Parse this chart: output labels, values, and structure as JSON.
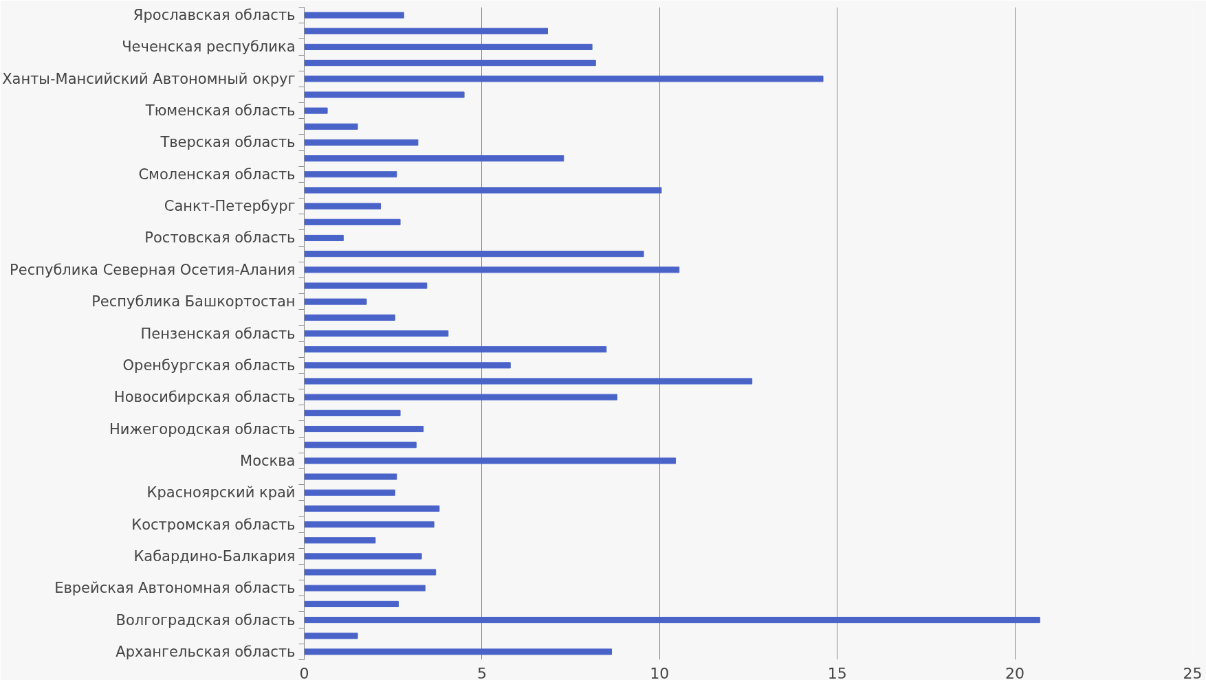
{
  "chart_data": {
    "type": "bar",
    "orientation": "horizontal",
    "categories": [
      "Ярославская область",
      null,
      "Чеченская республика",
      null,
      "Ханты-Мансийский Автономный округ",
      null,
      "Тюменская область",
      null,
      "Тверская область",
      null,
      "Смоленская область",
      null,
      "Санкт-Петербург",
      null,
      "Ростовская область",
      null,
      "Республика Северная Осетия-Алания",
      null,
      "Республика Башкортостан",
      null,
      "Пензенская область",
      null,
      "Оренбургская область",
      null,
      "Новосибирская область",
      null,
      "Нижегородская область",
      null,
      "Москва",
      null,
      "Красноярский край",
      null,
      "Костромская область",
      null,
      "Кабардино-Балкария",
      null,
      "Еврейская Автономная область",
      null,
      "Волгоградская область",
      null,
      "Архангельская область"
    ],
    "values": [
      2.8,
      6.85,
      8.1,
      8.2,
      14.6,
      4.5,
      0.65,
      1.5,
      3.2,
      7.3,
      2.6,
      10.05,
      2.15,
      2.7,
      1.1,
      9.55,
      10.55,
      3.45,
      1.75,
      2.55,
      4.05,
      8.5,
      5.8,
      12.6,
      8.8,
      2.7,
      3.35,
      3.15,
      10.45,
      2.6,
      2.55,
      3.8,
      3.65,
      2.0,
      3.3,
      3.7,
      3.4,
      2.65,
      20.7,
      1.5,
      8.65
    ],
    "color": "#4a63c9",
    "xlim": [
      0,
      25
    ],
    "xticks": [
      0,
      5,
      10,
      15,
      20,
      25
    ],
    "grid": "x"
  }
}
